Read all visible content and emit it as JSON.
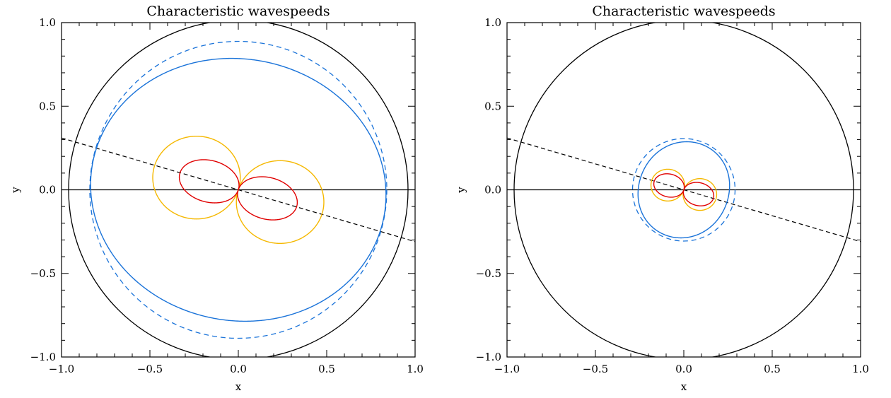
{
  "chart_data": [
    {
      "type": "line",
      "title": "Characteristic wavespeeds",
      "xlabel": "x",
      "ylabel": "y",
      "xlim": [
        -1.0,
        1.0
      ],
      "ylim": [
        -1.0,
        1.0
      ],
      "xticks": [
        "−1.0",
        "−0.5",
        "0.0",
        "0.5",
        "1.0"
      ],
      "yticks": [
        "−1.0",
        "−0.5",
        "0.0",
        "0.5",
        "1.0"
      ],
      "grid": false,
      "colors": {
        "outer": "#000000",
        "fast": "#1a73d9",
        "slow_outer": "#f5b800",
        "slow_inner": "#e00000"
      },
      "reference_circle": {
        "radius": 0.96
      },
      "horizontal_line": {
        "y": 0.0
      },
      "direction_line": {
        "x": [
          -1.0,
          1.0
        ],
        "y": [
          0.31,
          -0.31
        ],
        "dash": true
      },
      "fast_dashed_circle": {
        "radius": 0.84
      },
      "fast_curve": {
        "a0": 0.78,
        "a1": 0.06,
        "a2": 0.0,
        "phi": -0.3
      },
      "slow_outer_lobes": {
        "amplitude": 0.495,
        "phi": -0.3
      },
      "slow_inner_lobes": {
        "amplitude": 0.345,
        "phi": -0.3,
        "width": 0.72
      }
    },
    {
      "type": "line",
      "title": "Characteristic wavespeeds",
      "xlabel": "x",
      "ylabel": "y",
      "xlim": [
        -1.0,
        1.0
      ],
      "ylim": [
        -1.0,
        1.0
      ],
      "xticks": [
        "−1.0",
        "−0.5",
        "0.0",
        "0.5",
        "1.0"
      ],
      "yticks": [
        "−1.0",
        "−0.5",
        "0.0",
        "0.5",
        "1.0"
      ],
      "grid": false,
      "colors": {
        "outer": "#000000",
        "fast": "#1a73d9",
        "slow_outer": "#f5b800",
        "slow_inner": "#e00000"
      },
      "reference_circle": {
        "radius": 0.96
      },
      "horizontal_line": {
        "y": 0.0
      },
      "direction_line": {
        "x": [
          -1.0,
          1.0
        ],
        "y": [
          0.31,
          -0.31
        ],
        "dash": true
      },
      "fast_dashed_circle": {
        "radius": 0.29
      },
      "fast_curve": {
        "a0": 0.255,
        "a1": 0.0,
        "a2": 0.035,
        "phi": -0.3
      },
      "slow_outer_lobes": {
        "amplitude": 0.19,
        "phi": -0.3
      },
      "slow_inner_lobes": {
        "amplitude": 0.175,
        "phi": -0.3,
        "width": 0.78
      }
    }
  ]
}
